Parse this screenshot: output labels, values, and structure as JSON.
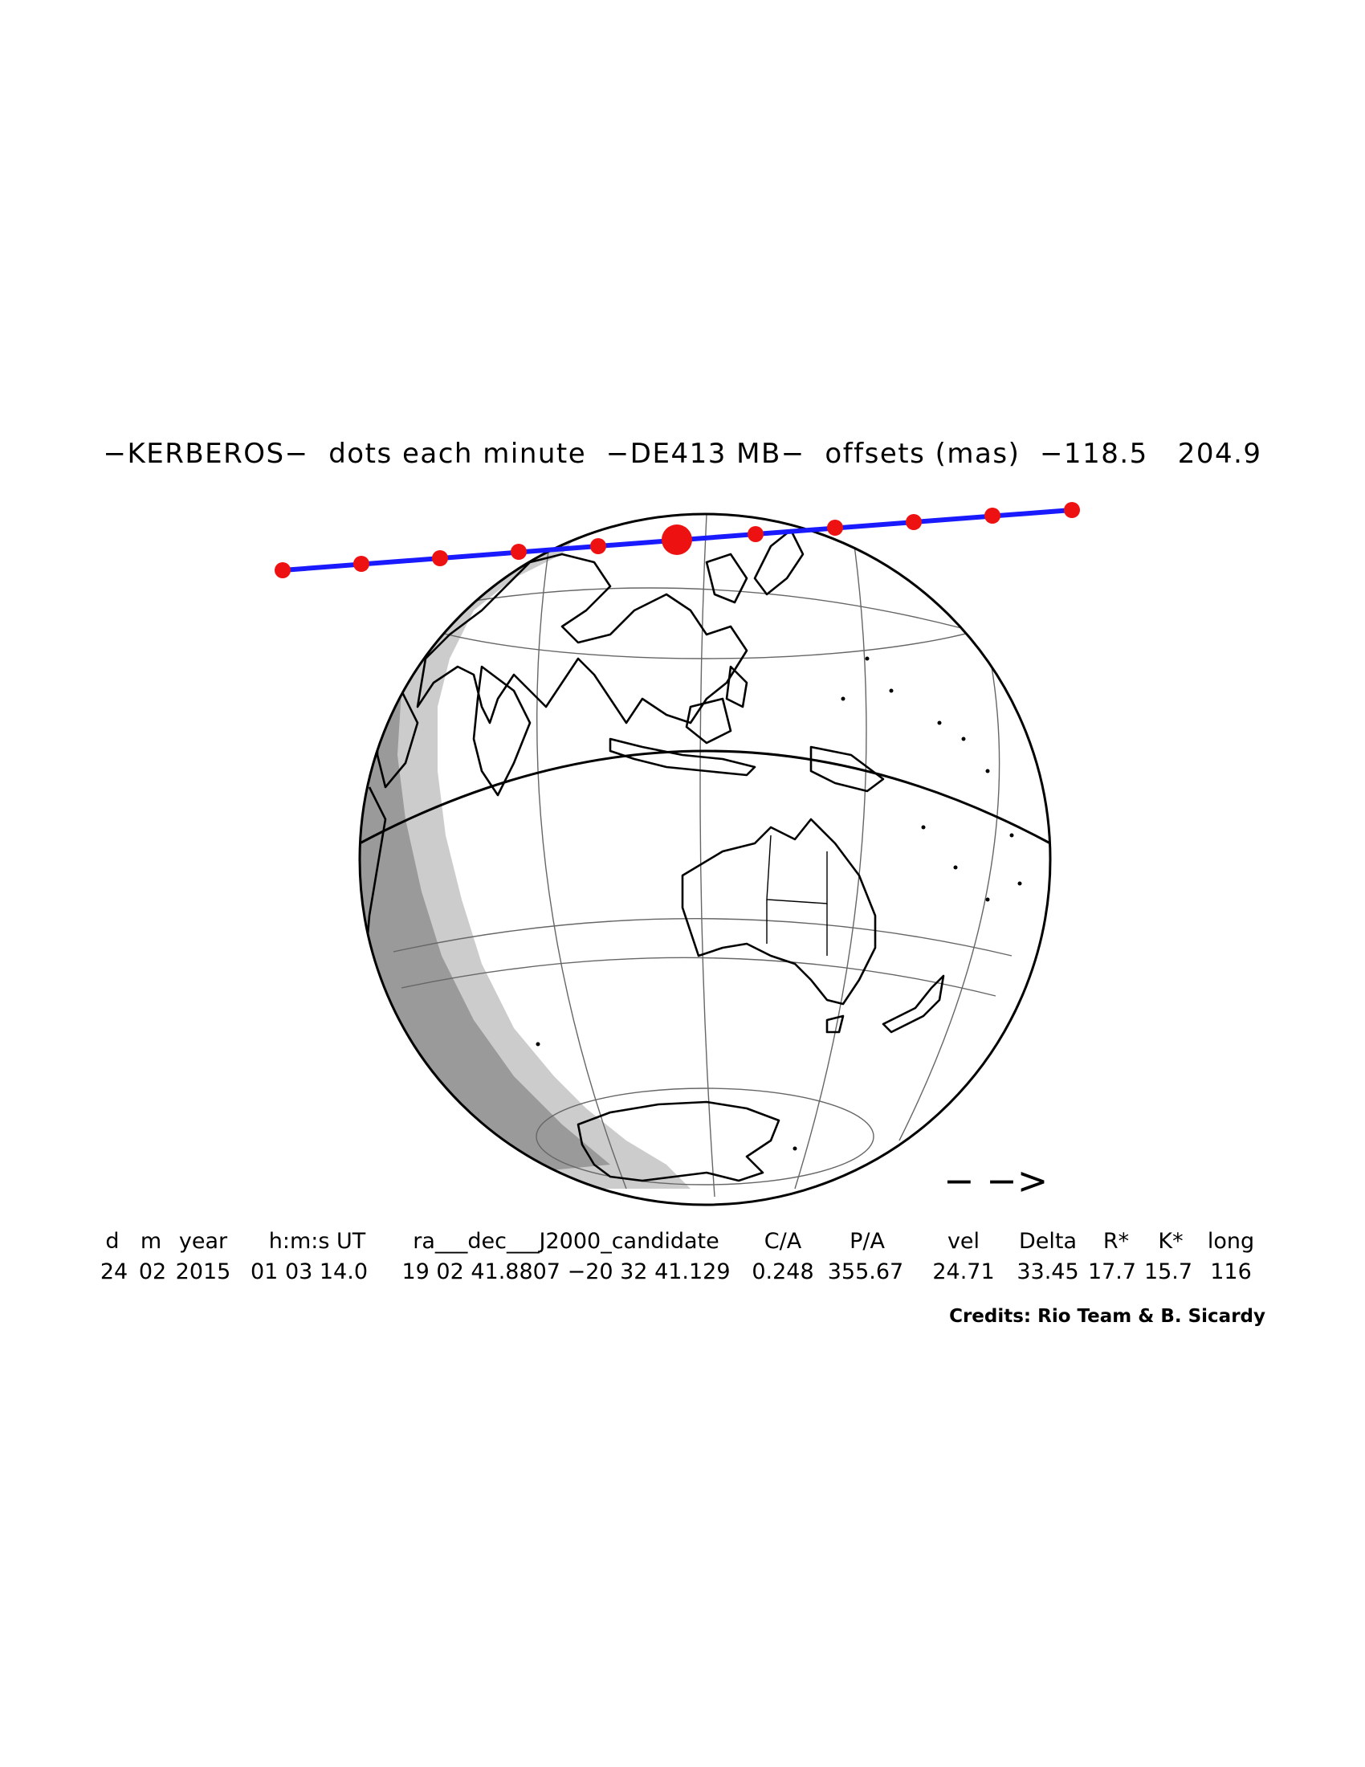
{
  "title": "−KERBEROS−  dots each minute  −DE413 MB−  offsets (mas)  −118.5   204.9",
  "direction_arrow": "− −>",
  "table": {
    "headers": [
      "d",
      "m",
      "year",
      "h:m:s UT",
      "ra___dec___J2000_candidate",
      "C/A",
      "P/A",
      "vel",
      "Delta",
      "R*",
      "K*",
      "long"
    ],
    "values": [
      "24",
      "02",
      "2015",
      "01 03 14.0",
      "19 02 41.8807 −20 32 41.129",
      "0.248",
      "355.67",
      "24.71",
      "33.45",
      "17.7",
      "15.7",
      "116"
    ]
  },
  "credits": "Credits: Rio Team & B. Sicardy",
  "colors": {
    "path_line": "#1a1aff",
    "minute_dots": "#ee1111",
    "twilight_light": "#cccccc",
    "twilight_dark": "#9a9a9a"
  },
  "map_features": {
    "central_meridian_deg": 116,
    "shadow_path": "occultation shadow path with minute dots",
    "regions": [
      "Asia",
      "Indian Ocean",
      "Australia",
      "Antarctica",
      "Pacific Ocean"
    ]
  }
}
